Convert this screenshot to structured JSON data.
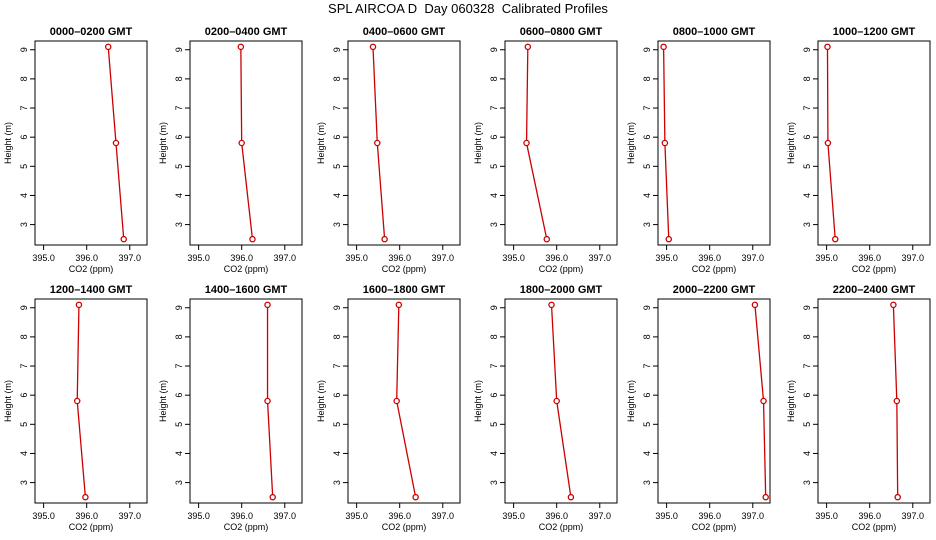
{
  "title": "SPL AIRCOA D  Day 060328  Calibrated Profiles",
  "chart_data": {
    "type": "line",
    "title": "SPL AIRCOA D  Day 060328  Calibrated Profiles",
    "xlabel": "CO2 (ppm)",
    "ylabel": "Height (m)",
    "xlim": [
      394.8,
      397.4
    ],
    "ylim": [
      2.3,
      9.3
    ],
    "x_ticks": [
      "395.0",
      "396.0",
      "397.0"
    ],
    "x_tick_values": [
      395.0,
      396.0,
      397.0
    ],
    "y_ticks": [
      "3",
      "4",
      "5",
      "6",
      "7",
      "8",
      "9"
    ],
    "y_tick_values": [
      3,
      4,
      5,
      6,
      7,
      8,
      9
    ],
    "line_color": "#cc0000",
    "marker_color": "#cc0000",
    "panels": [
      {
        "title": "0000–0200 GMT",
        "points": [
          {
            "x": 396.5,
            "y": 9.1
          },
          {
            "x": 396.68,
            "y": 5.8
          },
          {
            "x": 396.86,
            "y": 2.5
          }
        ]
      },
      {
        "title": "0200–0400 GMT",
        "points": [
          {
            "x": 395.98,
            "y": 9.1
          },
          {
            "x": 396.0,
            "y": 5.8
          },
          {
            "x": 396.25,
            "y": 2.5
          }
        ]
      },
      {
        "title": "0400–0600 GMT",
        "points": [
          {
            "x": 395.38,
            "y": 9.1
          },
          {
            "x": 395.48,
            "y": 5.8
          },
          {
            "x": 395.65,
            "y": 2.5
          }
        ]
      },
      {
        "title": "0600–0800 GMT",
        "points": [
          {
            "x": 395.33,
            "y": 9.1
          },
          {
            "x": 395.3,
            "y": 5.8
          },
          {
            "x": 395.77,
            "y": 2.5
          }
        ]
      },
      {
        "title": "0800–1000 GMT",
        "points": [
          {
            "x": 394.93,
            "y": 9.1
          },
          {
            "x": 394.96,
            "y": 5.8
          },
          {
            "x": 395.05,
            "y": 2.5
          }
        ]
      },
      {
        "title": "1000–1200 GMT",
        "points": [
          {
            "x": 395.02,
            "y": 9.1
          },
          {
            "x": 395.03,
            "y": 5.8
          },
          {
            "x": 395.2,
            "y": 2.5
          }
        ]
      },
      {
        "title": "1200–1400 GMT",
        "points": [
          {
            "x": 395.82,
            "y": 9.1
          },
          {
            "x": 395.78,
            "y": 5.8
          },
          {
            "x": 395.97,
            "y": 2.5
          }
        ]
      },
      {
        "title": "1400–1600 GMT",
        "points": [
          {
            "x": 396.6,
            "y": 9.1
          },
          {
            "x": 396.6,
            "y": 5.8
          },
          {
            "x": 396.72,
            "y": 2.5
          }
        ]
      },
      {
        "title": "1600–1800 GMT",
        "points": [
          {
            "x": 395.98,
            "y": 9.1
          },
          {
            "x": 395.93,
            "y": 5.8
          },
          {
            "x": 396.37,
            "y": 2.5
          }
        ]
      },
      {
        "title": "1800–2000 GMT",
        "points": [
          {
            "x": 395.88,
            "y": 9.1
          },
          {
            "x": 396.0,
            "y": 5.8
          },
          {
            "x": 396.33,
            "y": 2.5
          }
        ]
      },
      {
        "title": "2000–2200 GMT",
        "points": [
          {
            "x": 397.05,
            "y": 9.1
          },
          {
            "x": 397.25,
            "y": 5.8
          },
          {
            "x": 397.3,
            "y": 2.5
          }
        ]
      },
      {
        "title": "2200–2400 GMT",
        "points": [
          {
            "x": 396.55,
            "y": 9.1
          },
          {
            "x": 396.63,
            "y": 5.8
          },
          {
            "x": 396.65,
            "y": 2.5
          }
        ]
      }
    ]
  }
}
